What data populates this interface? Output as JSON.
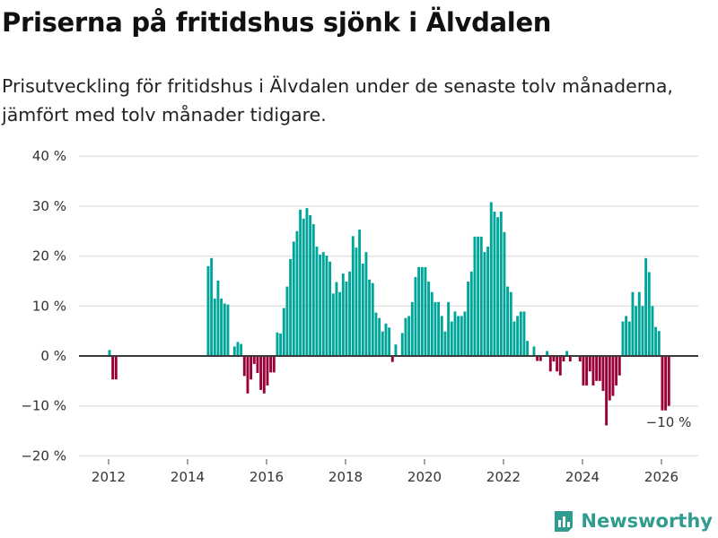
{
  "chart_data": {
    "type": "bar",
    "title": "Priserna på fritidshus sjönk i Älvdalen",
    "subtitle": "Prisutveckling för fritidshus i Älvdalen under de senaste tolv månaderna, jämfört med tolv månader tidigare.",
    "xlabel": "",
    "ylabel": "",
    "start_month": "2012-01",
    "frequency": "monthly",
    "ylim": [
      -20,
      40
    ],
    "yticks": [
      40,
      30,
      20,
      10,
      0,
      -10,
      -20
    ],
    "ytick_labels": [
      "40 %",
      "30 %",
      "20 %",
      "10 %",
      "0 %",
      "−10 %",
      "−20 %"
    ],
    "xticks": [
      2012,
      2014,
      2016,
      2018,
      2020,
      2022,
      2024,
      2026
    ],
    "xtick_labels": [
      "2012",
      "2014",
      "2016",
      "2018",
      "2020",
      "2022",
      "2024",
      "2026"
    ],
    "grid": true,
    "positive_color": "#00a59a",
    "negative_color": "#990038",
    "annotation": "−10 %",
    "values": [
      1.2,
      -4.7,
      -4.7,
      null,
      null,
      null,
      null,
      null,
      null,
      null,
      null,
      null,
      null,
      null,
      null,
      null,
      null,
      null,
      null,
      null,
      null,
      null,
      null,
      null,
      null,
      null,
      null,
      null,
      null,
      null,
      18.0,
      19.6,
      11.5,
      15.1,
      11.5,
      10.5,
      10.3,
      0,
      1.9,
      2.8,
      2.4,
      -4.0,
      -7.5,
      -4.7,
      -1.6,
      -3.4,
      -6.8,
      -7.5,
      -5.9,
      -3.3,
      -3.3,
      4.7,
      4.5,
      9.6,
      13.9,
      19.4,
      22.9,
      25.0,
      29.3,
      27.5,
      29.6,
      28.2,
      26.4,
      21.9,
      20.3,
      20.8,
      20.1,
      18.9,
      12.5,
      14.8,
      12.8,
      16.5,
      14.9,
      16.9,
      24.0,
      21.7,
      25.3,
      18.5,
      20.8,
      15.3,
      14.6,
      8.7,
      7.6,
      4.9,
      6.5,
      5.7,
      -1.2,
      2.3,
      0,
      4.6,
      7.6,
      8.0,
      10.8,
      15.8,
      17.8,
      17.8,
      17.8,
      14.9,
      12.8,
      10.8,
      10.8,
      8.0,
      4.9,
      10.8,
      6.9,
      8.9,
      8.0,
      8.0,
      8.9,
      14.9,
      16.9,
      23.9,
      23.9,
      23.9,
      20.8,
      21.9,
      30.8,
      28.9,
      27.8,
      28.9,
      24.8,
      13.9,
      12.8,
      6.9,
      8.0,
      8.9,
      8.9,
      3.0,
      0,
      1.9,
      -1.0,
      -1.0,
      0,
      1.0,
      -3.1,
      -1.1,
      -3.1,
      -3.9,
      -1.1,
      1.0,
      -1.1,
      0,
      0,
      -1.1,
      -5.9,
      -5.9,
      -3.1,
      -5.9,
      -5.0,
      -5.0,
      -7.0,
      -13.9,
      -8.9,
      -8.0,
      -5.9,
      -3.9,
      6.9,
      8.0,
      6.9,
      12.8,
      10.0,
      12.8,
      10.0,
      19.6,
      16.8,
      10.0,
      5.8,
      5.0,
      -10.9,
      -10.9,
      -10.0
    ]
  },
  "brand": {
    "name": "Newsworthy",
    "icon": "newsworthy-logo-icon",
    "color": "#2f9c8f"
  }
}
